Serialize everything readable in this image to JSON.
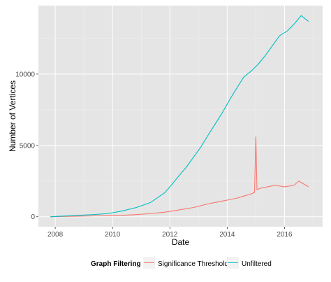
{
  "chart_data": {
    "type": "line",
    "title": "",
    "xlabel": "Date",
    "ylabel": "Number of Vertices",
    "x_tick_labels": [
      "2008",
      "2010",
      "2012",
      "2014",
      "2016"
    ],
    "y_tick_labels": [
      "0",
      "5000",
      "10000"
    ],
    "xlim": [
      "2007-06-01",
      "2017-05-01"
    ],
    "ylim": [
      -700,
      14800
    ],
    "grid": true,
    "legend": {
      "title": "Graph Filtering",
      "position": "bottom"
    },
    "series": [
      {
        "name": "Significance Thresholded",
        "color": "#F8766D",
        "points": [
          [
            "2007-11-01",
            0
          ],
          [
            "2008-05-01",
            20
          ],
          [
            "2008-11-01",
            40
          ],
          [
            "2009-05-01",
            60
          ],
          [
            "2009-11-01",
            80
          ],
          [
            "2010-05-01",
            100
          ],
          [
            "2010-11-01",
            150
          ],
          [
            "2011-05-01",
            220
          ],
          [
            "2011-11-01",
            320
          ],
          [
            "2012-05-01",
            480
          ],
          [
            "2012-11-01",
            650
          ],
          [
            "2013-05-01",
            900
          ],
          [
            "2013-08-01",
            1000
          ],
          [
            "2013-11-01",
            1100
          ],
          [
            "2014-02-01",
            1200
          ],
          [
            "2014-05-01",
            1300
          ],
          [
            "2014-08-01",
            1450
          ],
          [
            "2014-11-01",
            1600
          ],
          [
            "2014-12-15",
            1700
          ],
          [
            "2015-01-01",
            5600
          ],
          [
            "2015-01-15",
            1900
          ],
          [
            "2015-03-01",
            2000
          ],
          [
            "2015-06-01",
            2100
          ],
          [
            "2015-09-01",
            2200
          ],
          [
            "2016-01-01",
            2100
          ],
          [
            "2016-05-01",
            2200
          ],
          [
            "2016-07-01",
            2500
          ],
          [
            "2016-09-01",
            2300
          ],
          [
            "2016-11-01",
            2100
          ]
        ]
      },
      {
        "name": "Unfiltered",
        "color": "#00BFC4",
        "points": [
          [
            "2007-11-01",
            0
          ],
          [
            "2008-05-01",
            50
          ],
          [
            "2008-11-01",
            100
          ],
          [
            "2009-05-01",
            150
          ],
          [
            "2009-11-01",
            220
          ],
          [
            "2010-05-01",
            400
          ],
          [
            "2010-11-01",
            650
          ],
          [
            "2011-05-01",
            1000
          ],
          [
            "2011-11-01",
            1700
          ],
          [
            "2012-02-01",
            2300
          ],
          [
            "2012-05-01",
            2900
          ],
          [
            "2012-08-01",
            3500
          ],
          [
            "2012-11-01",
            4200
          ],
          [
            "2013-02-01",
            4900
          ],
          [
            "2013-05-01",
            5700
          ],
          [
            "2013-08-01",
            6500
          ],
          [
            "2013-11-01",
            7300
          ],
          [
            "2014-02-01",
            8200
          ],
          [
            "2014-05-01",
            9000
          ],
          [
            "2014-08-01",
            9800
          ],
          [
            "2014-11-01",
            10200
          ],
          [
            "2015-02-01",
            10700
          ],
          [
            "2015-05-01",
            11300
          ],
          [
            "2015-08-01",
            12000
          ],
          [
            "2015-11-01",
            12700
          ],
          [
            "2016-02-01",
            13000
          ],
          [
            "2016-05-01",
            13500
          ],
          [
            "2016-08-01",
            14100
          ],
          [
            "2016-11-01",
            13700
          ]
        ]
      }
    ]
  }
}
